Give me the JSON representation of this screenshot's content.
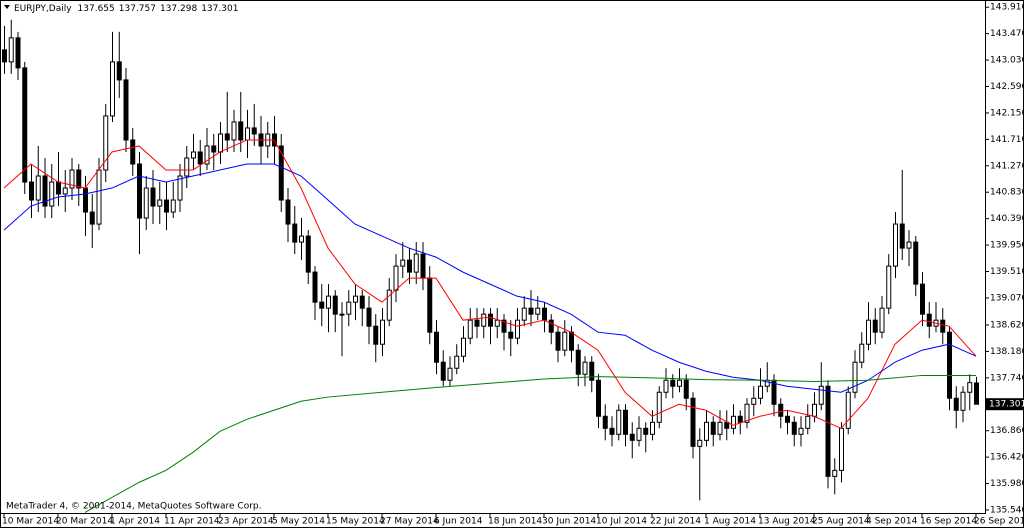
{
  "chart_data": {
    "type": "candlestick",
    "title": "EURJPY,Daily",
    "footer": "MetaTrader 4, © 2001-2014, MetaQuotes Software Corp.",
    "categories": [
      "10 Mar 2014",
      null,
      null,
      null,
      null,
      null,
      null,
      null,
      "20 Mar 2014",
      null,
      null,
      null,
      null,
      null,
      null,
      null,
      "1 Apr 2014",
      null,
      null,
      null,
      null,
      null,
      null,
      null,
      "11 Apr 2014",
      null,
      null,
      null,
      null,
      null,
      null,
      null,
      "23 Apr 2014",
      null,
      null,
      null,
      null,
      null,
      null,
      null,
      "5 May 2014",
      null,
      null,
      null,
      null,
      null,
      null,
      null,
      "15 May 2014",
      null,
      null,
      null,
      null,
      null,
      null,
      null,
      "27 May 2014",
      null,
      null,
      null,
      null,
      null,
      null,
      null,
      "6 Jun 2014",
      null,
      null,
      null,
      null,
      null,
      null,
      null,
      "18 Jun 2014",
      null,
      null,
      null,
      null,
      null,
      null,
      null,
      "30 Jun 2014",
      null,
      null,
      null,
      null,
      null,
      null,
      null,
      "10 Jul 2014",
      null,
      null,
      null,
      null,
      null,
      null,
      null,
      "22 Jul 2014",
      null,
      null,
      null,
      null,
      null,
      null,
      null,
      "1 Aug 2014",
      null,
      null,
      null,
      null,
      null,
      null,
      null,
      "13 Aug 2014",
      null,
      null,
      null,
      null,
      null,
      null,
      null,
      "25 Aug 2014",
      null,
      null,
      null,
      null,
      null,
      null,
      null,
      "4 Sep 2014",
      null,
      null,
      null,
      null,
      null,
      null,
      null,
      "16 Sep 2014",
      null,
      null,
      null,
      null,
      null,
      null,
      null,
      "26 Sep 2014"
    ],
    "open": [
      143.2,
      143.0,
      143.4,
      142.9,
      141.0,
      140.7,
      141.1,
      140.6,
      141.0,
      140.8,
      140.9,
      141.2,
      140.9,
      140.5,
      140.3,
      141.2,
      142.1,
      143.0,
      142.7,
      141.7,
      141.3,
      140.4,
      140.9,
      140.6,
      140.7,
      140.5,
      140.7,
      141.1,
      141.4,
      141.5,
      141.3,
      141.6,
      141.5,
      141.8,
      141.7,
      142.0,
      141.7,
      141.9,
      141.8,
      141.6,
      141.8,
      141.6,
      140.7,
      140.3,
      140.0,
      140.1,
      139.5,
      139.0,
      138.9,
      139.1,
      138.8,
      138.8,
      139.0,
      139.1,
      138.9,
      138.6,
      138.3,
      138.7,
      139.2,
      139.6,
      139.7,
      139.5,
      139.8,
      139.4,
      138.5,
      138.0,
      137.7,
      137.9,
      138.1,
      138.4,
      138.7,
      138.6,
      138.8,
      138.6,
      138.7,
      138.5,
      138.4,
      138.7,
      138.9,
      138.8,
      138.9,
      138.7,
      138.5,
      138.2,
      138.5,
      138.2,
      137.8,
      138.0,
      137.7,
      137.1,
      136.9,
      136.8,
      137.2,
      136.8,
      136.7,
      136.9,
      136.8,
      137.0,
      137.5,
      137.7,
      137.6,
      137.7,
      137.4,
      136.6,
      136.7,
      137.0,
      136.8,
      137.0,
      136.9,
      137.1,
      137.0,
      137.3,
      137.4,
      137.6,
      137.7,
      137.3,
      137.1,
      137.0,
      136.8,
      136.9,
      137.1,
      137.3,
      137.6,
      136.1,
      136.2,
      136.9,
      137.5,
      138.0,
      138.3,
      138.7,
      138.5,
      138.9,
      139.6,
      140.3,
      139.9,
      140.0,
      139.3,
      138.8,
      138.6,
      138.7,
      138.5,
      137.4,
      137.2,
      137.5,
      137.655
    ],
    "high": [
      143.6,
      143.7,
      143.5,
      143.0,
      141.3,
      141.6,
      141.4,
      141.3,
      141.5,
      141.2,
      141.4,
      141.3,
      141.1,
      140.8,
      141.4,
      142.3,
      143.5,
      143.5,
      142.9,
      141.9,
      141.5,
      141.1,
      141.2,
      141.0,
      141.0,
      141.0,
      141.3,
      141.6,
      141.8,
      141.7,
      141.9,
      141.8,
      142.0,
      142.5,
      142.2,
      142.5,
      142.2,
      142.3,
      142.1,
      142.0,
      142.1,
      141.8,
      140.9,
      140.6,
      140.4,
      140.2,
      139.6,
      139.3,
      139.3,
      139.2,
      139.0,
      139.2,
      139.3,
      139.2,
      139.1,
      138.8,
      138.9,
      139.4,
      139.8,
      140.0,
      139.9,
      140.0,
      140.0,
      139.6,
      138.7,
      138.2,
      138.1,
      138.3,
      138.6,
      138.9,
      138.9,
      138.9,
      138.9,
      138.9,
      138.8,
      138.7,
      138.9,
      139.1,
      139.2,
      139.1,
      139.0,
      138.8,
      138.6,
      138.7,
      138.6,
      138.3,
      138.1,
      138.1,
      137.8,
      137.3,
      137.1,
      137.3,
      137.3,
      137.0,
      137.1,
      137.0,
      137.2,
      137.6,
      137.9,
      137.8,
      137.9,
      137.8,
      137.5,
      136.9,
      137.2,
      137.1,
      137.2,
      137.2,
      137.3,
      137.2,
      137.4,
      137.6,
      137.9,
      138.0,
      137.8,
      137.4,
      137.2,
      137.1,
      137.1,
      137.3,
      137.5,
      138.0,
      137.7,
      136.4,
      137.0,
      137.6,
      138.2,
      138.5,
      139.0,
      138.9,
      139.1,
      139.8,
      140.5,
      141.2,
      140.2,
      140.1,
      139.5,
      139.0,
      139.0,
      138.9,
      138.6,
      137.6,
      137.6,
      137.8,
      137.757
    ],
    "low": [
      142.8,
      142.8,
      142.7,
      140.8,
      140.4,
      140.5,
      140.4,
      140.4,
      140.6,
      140.5,
      140.7,
      140.6,
      140.1,
      139.9,
      140.2,
      141.0,
      142.0,
      142.4,
      141.5,
      141.1,
      139.8,
      140.2,
      140.3,
      140.3,
      140.2,
      140.4,
      140.5,
      140.9,
      141.2,
      141.1,
      141.2,
      141.2,
      141.3,
      141.5,
      141.5,
      141.5,
      141.4,
      141.6,
      141.3,
      141.4,
      141.3,
      140.5,
      140.0,
      139.8,
      139.7,
      139.3,
      138.7,
      138.6,
      138.5,
      138.5,
      138.1,
      138.6,
      138.7,
      138.6,
      138.3,
      138.0,
      138.1,
      138.6,
      139.0,
      139.4,
      139.3,
      139.3,
      139.2,
      138.3,
      137.8,
      137.6,
      137.6,
      137.8,
      138.0,
      138.3,
      138.4,
      138.4,
      138.3,
      138.4,
      138.2,
      138.1,
      138.3,
      138.6,
      138.6,
      138.7,
      138.5,
      138.3,
      138.0,
      138.1,
      138.0,
      137.6,
      137.6,
      137.5,
      136.9,
      136.7,
      136.6,
      136.7,
      136.6,
      136.4,
      136.6,
      136.5,
      136.7,
      136.9,
      137.4,
      137.4,
      137.5,
      137.2,
      136.4,
      135.7,
      136.6,
      136.6,
      136.7,
      136.7,
      136.8,
      136.8,
      136.9,
      137.1,
      137.3,
      137.5,
      137.1,
      136.9,
      136.8,
      136.6,
      136.6,
      136.8,
      137.0,
      137.2,
      135.9,
      135.8,
      136.0,
      136.8,
      137.4,
      137.9,
      138.2,
      138.3,
      138.4,
      138.8,
      139.4,
      139.7,
      139.6,
      139.1,
      138.6,
      138.4,
      138.5,
      138.3,
      137.2,
      136.9,
      137.0,
      137.2,
      137.298
    ],
    "close": [
      143.0,
      143.4,
      142.9,
      141.0,
      140.7,
      141.1,
      140.6,
      141.0,
      140.8,
      140.9,
      141.2,
      140.9,
      140.5,
      140.3,
      141.2,
      142.1,
      143.0,
      142.7,
      141.7,
      141.3,
      140.4,
      140.9,
      140.6,
      140.7,
      140.5,
      140.7,
      141.1,
      141.4,
      141.5,
      141.3,
      141.6,
      141.5,
      141.8,
      141.7,
      142.0,
      141.7,
      141.9,
      141.8,
      141.6,
      141.8,
      141.6,
      140.7,
      140.3,
      140.0,
      140.1,
      139.5,
      139.0,
      138.9,
      139.1,
      138.8,
      138.8,
      139.0,
      139.1,
      138.9,
      138.6,
      138.3,
      138.7,
      139.2,
      139.6,
      139.7,
      139.5,
      139.8,
      139.4,
      138.5,
      138.0,
      137.7,
      137.9,
      138.1,
      138.4,
      138.7,
      138.6,
      138.8,
      138.6,
      138.7,
      138.5,
      138.4,
      138.7,
      138.9,
      138.8,
      138.9,
      138.7,
      138.5,
      138.2,
      138.5,
      138.2,
      137.8,
      138.0,
      137.7,
      137.1,
      136.9,
      136.8,
      137.2,
      136.8,
      136.7,
      136.9,
      136.8,
      137.0,
      137.5,
      137.7,
      137.6,
      137.7,
      137.4,
      136.6,
      136.7,
      137.0,
      136.8,
      137.0,
      136.9,
      137.1,
      137.0,
      137.3,
      137.4,
      137.6,
      137.7,
      137.3,
      137.1,
      137.0,
      136.8,
      136.9,
      137.1,
      137.3,
      137.6,
      136.1,
      136.2,
      136.9,
      137.5,
      138.0,
      138.3,
      138.7,
      138.5,
      138.9,
      139.6,
      140.3,
      139.9,
      140.0,
      139.3,
      138.8,
      138.6,
      138.7,
      138.5,
      137.4,
      137.2,
      137.5,
      137.66,
      137.301
    ],
    "series": [
      {
        "color": "#ff0000",
        "x": [
          0,
          4,
          8,
          12,
          16,
          20,
          24,
          28,
          32,
          36,
          40,
          44,
          48,
          52,
          56,
          60,
          64,
          68,
          72,
          76,
          80,
          84,
          88,
          92,
          96,
          100,
          104,
          108,
          112,
          116,
          120,
          124,
          128,
          132,
          136,
          140,
          144
        ],
        "values": [
          140.9,
          141.3,
          141.0,
          140.9,
          141.5,
          141.6,
          141.2,
          141.2,
          141.5,
          141.7,
          141.7,
          140.9,
          139.9,
          139.3,
          139.0,
          139.4,
          139.4,
          138.7,
          138.75,
          138.6,
          138.7,
          138.5,
          138.2,
          137.5,
          137.1,
          137.3,
          137.2,
          136.95,
          137.1,
          137.2,
          137.1,
          136.9,
          137.4,
          138.3,
          138.7,
          138.6,
          138.1
        ]
      },
      {
        "color": "#0000ff",
        "x": [
          0,
          4,
          8,
          12,
          16,
          20,
          24,
          28,
          32,
          36,
          40,
          44,
          48,
          52,
          56,
          60,
          64,
          68,
          72,
          76,
          80,
          84,
          88,
          92,
          96,
          100,
          104,
          108,
          112,
          116,
          120,
          124,
          128,
          132,
          136,
          140,
          144
        ],
        "values": [
          140.2,
          140.6,
          140.75,
          140.8,
          140.9,
          141.1,
          141.0,
          141.1,
          141.2,
          141.3,
          141.3,
          141.1,
          140.7,
          140.3,
          140.1,
          139.9,
          139.75,
          139.5,
          139.3,
          139.1,
          139.0,
          138.8,
          138.5,
          138.45,
          138.2,
          138.0,
          137.85,
          137.75,
          137.7,
          137.6,
          137.55,
          137.5,
          137.7,
          138.0,
          138.2,
          138.3,
          138.1
        ]
      },
      {
        "color": "#008000",
        "x": [
          12,
          16,
          20,
          24,
          28,
          32,
          36,
          40,
          44,
          48,
          56,
          64,
          72,
          80,
          88,
          96,
          104,
          112,
          120,
          128,
          136,
          144
        ],
        "values": [
          135.5,
          135.75,
          136.0,
          136.2,
          136.5,
          136.85,
          137.05,
          137.2,
          137.35,
          137.42,
          137.5,
          137.58,
          137.65,
          137.72,
          137.76,
          137.74,
          137.71,
          137.7,
          137.68,
          137.7,
          137.78,
          137.78
        ]
      }
    ],
    "ylim": [
      135.49,
      144.03
    ],
    "yticks": [
      {
        "value": 143.91,
        "label": "143.910"
      },
      {
        "value": 143.47,
        "label": "143.470"
      },
      {
        "value": 143.03,
        "label": "143.030"
      },
      {
        "value": 142.59,
        "label": "142.590"
      },
      {
        "value": 142.15,
        "label": "142.150"
      },
      {
        "value": 141.71,
        "label": "141.710"
      },
      {
        "value": 141.27,
        "label": "141.270"
      },
      {
        "value": 140.83,
        "label": "140.830"
      },
      {
        "value": 140.39,
        "label": "140.390"
      },
      {
        "value": 139.95,
        "label": "139.950"
      },
      {
        "value": 139.51,
        "label": "139.510"
      },
      {
        "value": 139.07,
        "label": "139.070"
      },
      {
        "value": 138.62,
        "label": "138.620"
      },
      {
        "value": 138.18,
        "label": "138.180"
      },
      {
        "value": 137.74,
        "label": "137.740"
      },
      {
        "value": 136.86,
        "label": "136.860"
      },
      {
        "value": 136.42,
        "label": "136.420"
      },
      {
        "value": 135.98,
        "label": "135.980"
      },
      {
        "value": 135.54,
        "label": "135.540"
      }
    ]
  }
}
